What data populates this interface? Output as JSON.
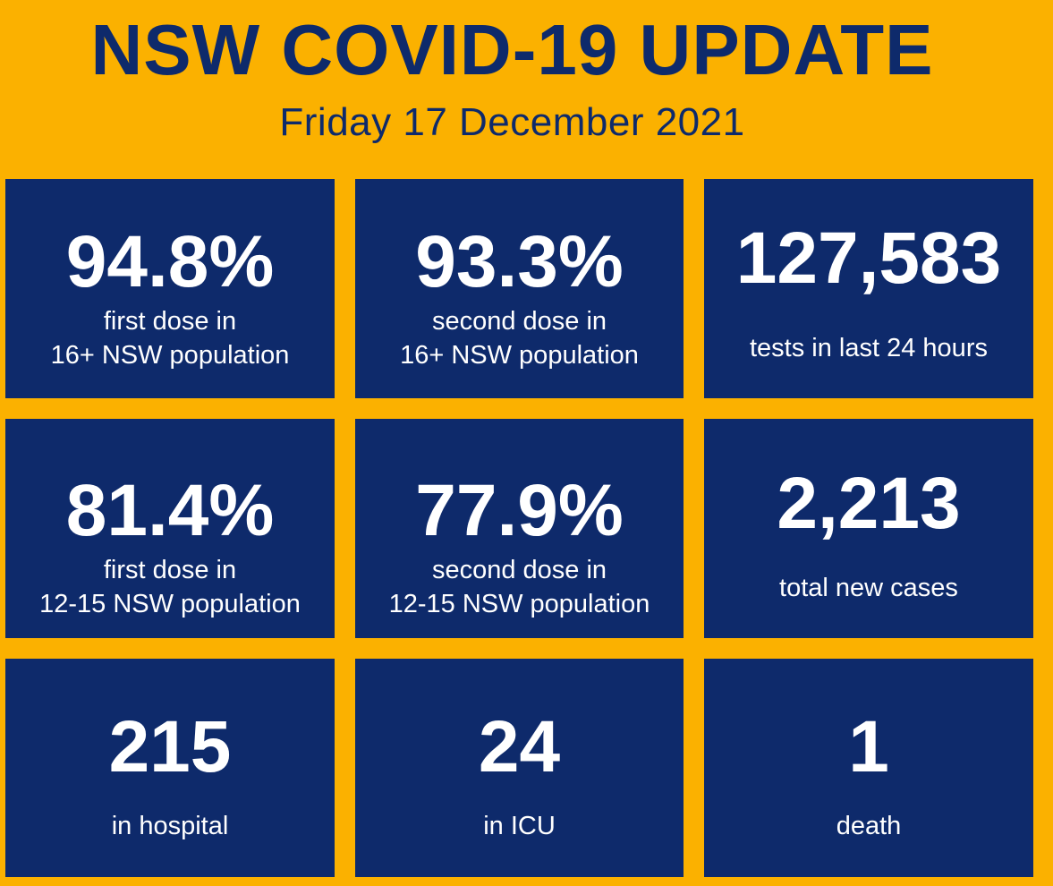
{
  "header": {
    "title": "NSW COVID-19 UPDATE",
    "date": "Friday 17 December 2021"
  },
  "stats": [
    {
      "value": "94.8%",
      "label_line1": "first dose in",
      "label_line2": "16+ NSW population"
    },
    {
      "value": "93.3%",
      "label_line1": "second dose in",
      "label_line2": "16+ NSW population"
    },
    {
      "value": "127,583",
      "label_line1": "tests in last 24 hours"
    },
    {
      "value": "81.4%",
      "label_line1": "first dose in",
      "label_line2": "12-15 NSW population"
    },
    {
      "value": "77.9%",
      "label_line1": "second dose in",
      "label_line2": "12-15 NSW population"
    },
    {
      "value": "2,213",
      "label_line1": "total new cases"
    },
    {
      "value": "215",
      "label_line1": "in hospital"
    },
    {
      "value": "24",
      "label_line1": "in ICU"
    },
    {
      "value": "1",
      "label_line1": "death"
    }
  ],
  "colors": {
    "background": "#FBB100",
    "tile": "#0E2A6B",
    "tile_text": "#FFFFFF",
    "heading_text": "#0E2A6B"
  }
}
